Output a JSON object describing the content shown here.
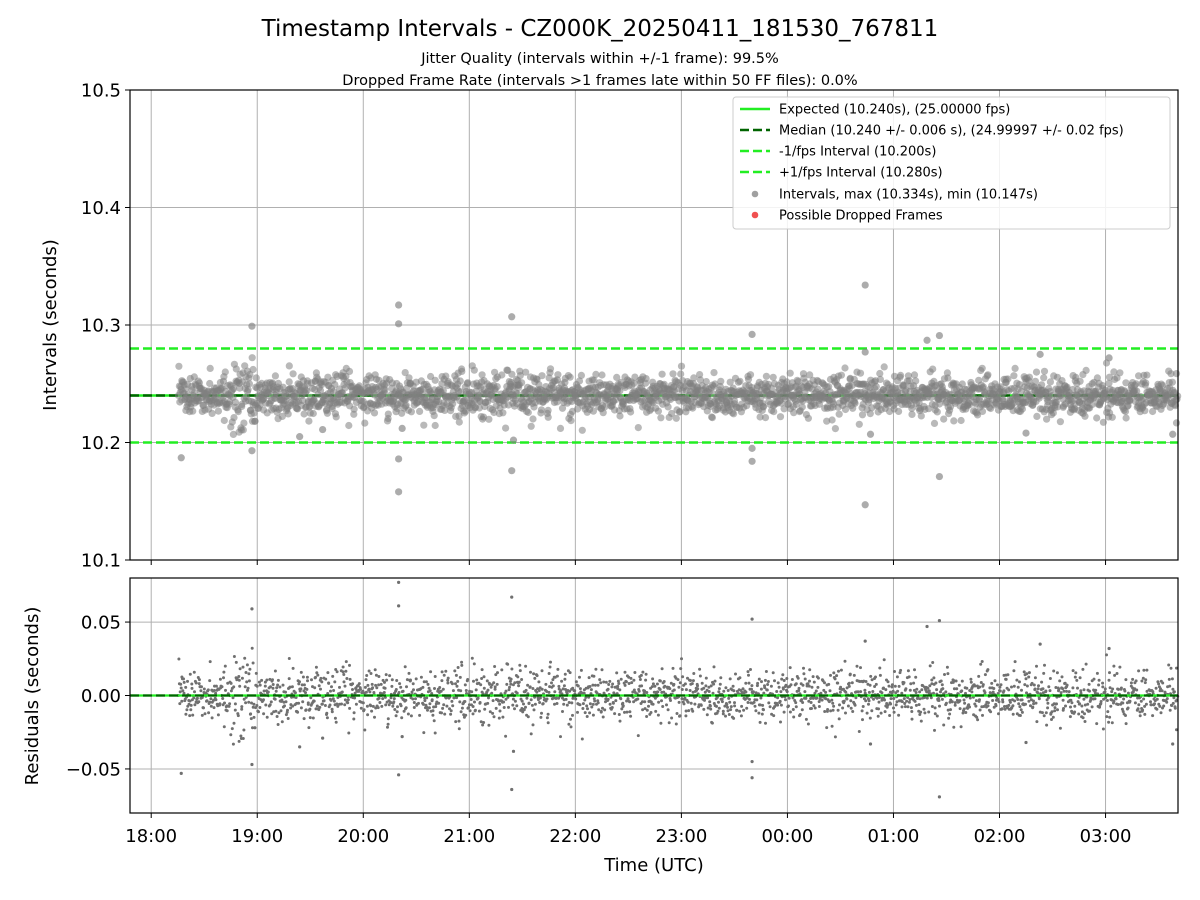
{
  "chart_data": {
    "type": "scatter",
    "title": "Timestamp Intervals - CZ000K_20250411_181530_767811",
    "subtitle_lines": [
      "Jitter Quality (intervals within +/-1 frame): 99.5%",
      "Dropped Frame Rate (intervals >1 frames late within 50 FF files): 0.0%"
    ],
    "xlabel": "Time (UTC)",
    "xlim": [
      "2025-04-11T17:48:00Z",
      "2025-04-12T03:41:00Z"
    ],
    "x_ticks": [
      {
        "value": "2025-04-11T18:00:00Z",
        "label": "18:00"
      },
      {
        "value": "2025-04-11T19:00:00Z",
        "label": "19:00"
      },
      {
        "value": "2025-04-11T20:00:00Z",
        "label": "20:00"
      },
      {
        "value": "2025-04-11T21:00:00Z",
        "label": "21:00"
      },
      {
        "value": "2025-04-11T22:00:00Z",
        "label": "22:00"
      },
      {
        "value": "2025-04-11T23:00:00Z",
        "label": "23:00"
      },
      {
        "value": "2025-04-12T00:00:00Z",
        "label": "00:00"
      },
      {
        "value": "2025-04-12T01:00:00Z",
        "label": "01:00"
      },
      {
        "value": "2025-04-12T02:00:00Z",
        "label": "02:00"
      },
      {
        "value": "2025-04-12T03:00:00Z",
        "label": "03:00"
      }
    ],
    "grid": true,
    "legend_position": "top-right",
    "data_start": "2025-04-11T18:15:30Z",
    "data_end": "2025-04-12T03:41:00Z",
    "colors": {
      "expected": "#22ee22",
      "median": "#006400",
      "interval_limits": "#22ee22",
      "points": "#808080",
      "residual_points": "#707070",
      "dropped": "#f05050",
      "grid": "#b0b0b0"
    },
    "panels": [
      {
        "id": "intervals",
        "ylabel": "Intervals (seconds)",
        "ylim": [
          10.1,
          10.5
        ],
        "y_ticks": [
          "10.1",
          "10.2",
          "10.3",
          "10.4",
          "10.5"
        ],
        "hlines": [
          {
            "name": "expected",
            "y": 10.24,
            "style": "solid"
          },
          {
            "name": "median",
            "y": 10.24,
            "style": "dashed"
          },
          {
            "name": "minus_fps",
            "y": 10.2,
            "style": "dashed"
          },
          {
            "name": "plus_fps",
            "y": 10.28,
            "style": "dashed"
          }
        ],
        "series": [
          {
            "name": "Intervals, max (10.334s), min (10.147s)",
            "center": 10.24,
            "spread": 0.009,
            "count": 2300
          },
          {
            "name": "Possible Dropped Frames",
            "count": 0,
            "values": []
          }
        ],
        "outliers": [
          {
            "x": "2025-04-11T18:17:00Z",
            "y": 10.187
          },
          {
            "x": "2025-04-11T18:57:00Z",
            "y": 10.299
          },
          {
            "x": "2025-04-11T18:57:00Z",
            "y": 10.193
          },
          {
            "x": "2025-04-11T19:24:00Z",
            "y": 10.205
          },
          {
            "x": "2025-04-11T19:37:00Z",
            "y": 10.211
          },
          {
            "x": "2025-04-11T20:20:00Z",
            "y": 10.317
          },
          {
            "x": "2025-04-11T20:20:00Z",
            "y": 10.301
          },
          {
            "x": "2025-04-11T20:20:00Z",
            "y": 10.186
          },
          {
            "x": "2025-04-11T20:20:00Z",
            "y": 10.158
          },
          {
            "x": "2025-04-11T20:22:00Z",
            "y": 10.212
          },
          {
            "x": "2025-04-11T21:24:00Z",
            "y": 10.307
          },
          {
            "x": "2025-04-11T21:24:00Z",
            "y": 10.176
          },
          {
            "x": "2025-04-11T21:25:00Z",
            "y": 10.202
          },
          {
            "x": "2025-04-11T23:40:00Z",
            "y": 10.292
          },
          {
            "x": "2025-04-11T23:40:00Z",
            "y": 10.195
          },
          {
            "x": "2025-04-11T23:40:00Z",
            "y": 10.184
          },
          {
            "x": "2025-04-12T00:44:00Z",
            "y": 10.334
          },
          {
            "x": "2025-04-12T00:44:00Z",
            "y": 10.147
          },
          {
            "x": "2025-04-12T00:44:00Z",
            "y": 10.277
          },
          {
            "x": "2025-04-12T00:47:00Z",
            "y": 10.207
          },
          {
            "x": "2025-04-12T01:19:00Z",
            "y": 10.287
          },
          {
            "x": "2025-04-12T01:26:00Z",
            "y": 10.291
          },
          {
            "x": "2025-04-12T01:26:00Z",
            "y": 10.171
          },
          {
            "x": "2025-04-12T02:15:00Z",
            "y": 10.208
          },
          {
            "x": "2025-04-12T02:23:00Z",
            "y": 10.275
          },
          {
            "x": "2025-04-12T03:02:00Z",
            "y": 10.272
          },
          {
            "x": "2025-04-12T03:38:00Z",
            "y": 10.207
          }
        ]
      },
      {
        "id": "residuals",
        "ylabel": "Residuals (seconds)",
        "ylim": [
          -0.08,
          0.08
        ],
        "y_ticks": [
          "−0.05",
          "0.00",
          "0.05"
        ],
        "y_tick_values": [
          -0.05,
          0.0,
          0.05
        ],
        "hlines": [
          {
            "name": "zero_expected",
            "y": 0.0,
            "style": "solid"
          },
          {
            "name": "zero_median",
            "y": 0.0,
            "style": "dashed"
          }
        ],
        "series": [
          {
            "name": "Residuals",
            "center": 0.0,
            "spread": 0.009,
            "count": 2300
          }
        ]
      }
    ],
    "legend": [
      {
        "label": "Expected (10.240s), (25.00000 fps)",
        "kind": "solid-line",
        "color": "#22ee22"
      },
      {
        "label": "Median (10.240 +/- 0.006 s), (24.99997 +/- 0.02 fps)",
        "kind": "dashed-line",
        "color": "#006400"
      },
      {
        "label": "-1/fps Interval (10.200s)",
        "kind": "dashed-line",
        "color": "#22ee22"
      },
      {
        "label": "+1/fps Interval (10.280s)",
        "kind": "dashed-line",
        "color": "#22ee22"
      },
      {
        "label": "Intervals, max (10.334s), min (10.147s)",
        "kind": "marker",
        "color": "#a0a0a0"
      },
      {
        "label": "Possible Dropped Frames",
        "kind": "marker",
        "color": "#f05050"
      }
    ]
  }
}
